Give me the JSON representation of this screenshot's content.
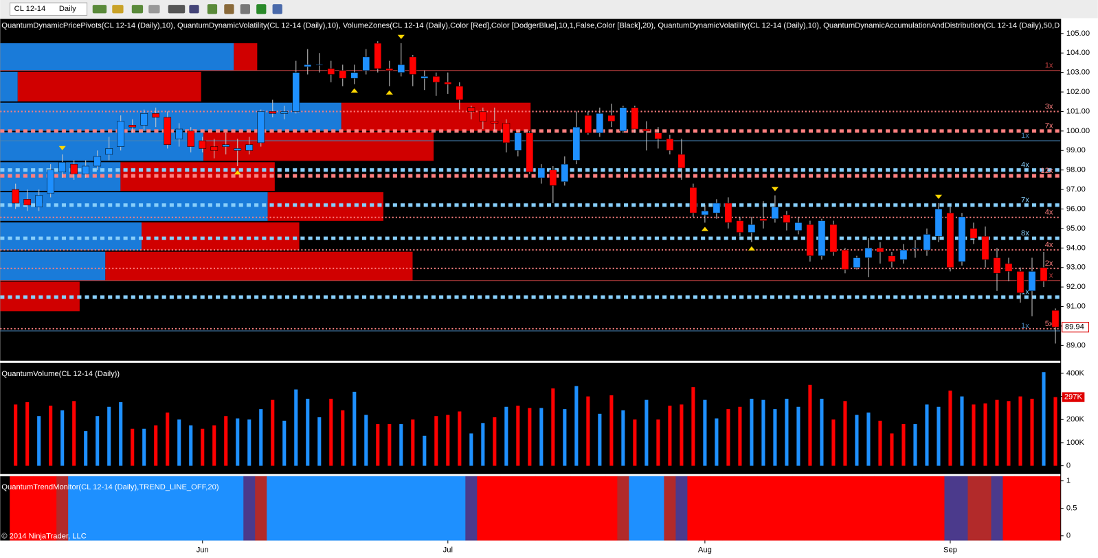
{
  "toolbar": {
    "instrument": "CL 12-14",
    "period": "Daily"
  },
  "copyright": "© 2014 NinjaTrader, LLC",
  "chart_data": [
    {
      "type": "candlestick",
      "title": "QuantumDynamicPricePivots(CL 12-14 (Daily),10), QuantumDynamicVolatility(CL 12-14 (Daily),10), VolumeZones(CL 12-14 (Daily),Color [Red],Color [DodgerBlue],10,1,False,Color [Black],20), QuantumDynamicVolatility(CL 12-14 (Daily),10), QuantumDynamicAccumulationAndDistribution(CL 12-14 (Daily),50,D",
      "categories": [
        null,
        null,
        null,
        null,
        null,
        null,
        null,
        null,
        null,
        null,
        null,
        null,
        null,
        null,
        null,
        null,
        "Jun",
        null,
        null,
        null,
        null,
        null,
        null,
        null,
        null,
        null,
        null,
        null,
        null,
        null,
        null,
        null,
        null,
        null,
        null,
        null,
        null,
        "Jul",
        null,
        null,
        null,
        null,
        null,
        null,
        null,
        null,
        null,
        null,
        null,
        null,
        null,
        null,
        null,
        null,
        null,
        null,
        null,
        null,
        null,
        "Aug",
        null,
        null,
        null,
        null,
        null,
        null,
        null,
        null,
        null,
        null,
        null,
        null,
        null,
        null,
        null,
        null,
        null,
        null,
        null,
        null,
        "Sep",
        null,
        null,
        null,
        null,
        null,
        null,
        null,
        null,
        null
      ],
      "open": [
        97.0,
        96.5,
        96.1,
        96.8,
        97.9,
        98.3,
        97.8,
        98.2,
        98.8,
        99.2,
        100.3,
        100.3,
        100.9,
        100.7,
        99.6,
        100.0,
        99.5,
        99.2,
        99.2,
        99.0,
        99.0,
        99.4,
        101.0,
        100.9,
        101.0,
        103.3,
        103.4,
        103.2,
        103.1,
        102.7,
        103.1,
        104.5,
        103.2,
        103.0,
        103.8,
        102.7,
        102.8,
        102.5,
        102.3,
        101.2,
        101.0,
        100.5,
        100.4,
        99.0,
        99.9,
        97.6,
        98.0,
        97.4,
        98.5,
        100.8,
        99.9,
        100.8,
        100.0,
        101.2,
        100.1,
        99.9,
        99.6,
        98.8,
        97.1,
        95.7,
        95.8,
        96.3,
        95.4,
        94.8,
        95.5,
        95.5,
        95.7,
        94.9,
        95.2,
        93.6,
        95.2,
        93.9,
        93.0,
        93.5,
        94.0,
        93.6,
        93.4,
        94.0,
        93.9,
        94.6,
        95.8,
        93.3,
        95.0,
        94.6,
        93.5,
        93.2,
        92.8,
        91.8,
        93.0,
        90.8
      ],
      "high": [
        97.3,
        97.0,
        97.0,
        98.3,
        98.8,
        98.5,
        98.5,
        99.0,
        99.7,
        100.8,
        100.6,
        101.1,
        101.2,
        101.0,
        100.4,
        100.2,
        99.7,
        99.6,
        99.9,
        99.6,
        99.7,
        101.1,
        101.6,
        101.3,
        103.6,
        104.2,
        104.0,
        103.6,
        103.4,
        103.4,
        104.2,
        104.6,
        103.6,
        104.5,
        103.9,
        103.1,
        103.0,
        103.0,
        102.5,
        101.3,
        101.2,
        101.2,
        100.6,
        100.0,
        100.0,
        98.3,
        98.2,
        98.7,
        101.0,
        101.0,
        101.2,
        101.4,
        101.3,
        101.3,
        100.5,
        100.2,
        99.8,
        99.6,
        97.3,
        96.2,
        96.5,
        96.6,
        95.6,
        95.6,
        96.4,
        96.7,
        95.9,
        95.6,
        95.4,
        95.5,
        95.4,
        94.0,
        93.6,
        94.5,
        94.3,
        93.8,
        94.2,
        94.4,
        95.0,
        96.3,
        96.1,
        95.8,
        95.3,
        95.1,
        94.0,
        93.5,
        93.0,
        93.5,
        93.8,
        90.9
      ],
      "low": [
        96.0,
        95.9,
        95.9,
        96.6,
        97.6,
        97.5,
        97.6,
        98.0,
        98.5,
        99.0,
        99.9,
        100.0,
        100.2,
        99.1,
        99.2,
        98.9,
        98.9,
        98.6,
        98.8,
        98.2,
        98.8,
        99.2,
        100.7,
        100.6,
        100.9,
        102.9,
        103.0,
        102.5,
        102.3,
        102.4,
        102.9,
        103.0,
        102.3,
        102.8,
        102.3,
        102.1,
        101.8,
        101.9,
        101.1,
        100.6,
        100.1,
        100.0,
        98.9,
        98.7,
        97.8,
        97.3,
        96.3,
        97.2,
        98.3,
        99.8,
        99.7,
        100.2,
        99.9,
        99.9,
        99.0,
        99.1,
        98.8,
        97.5,
        95.6,
        95.3,
        95.5,
        95.0,
        94.6,
        94.3,
        95.0,
        95.3,
        94.9,
        94.7,
        93.3,
        93.4,
        93.6,
        92.7,
        92.9,
        92.5,
        93.2,
        93.0,
        93.2,
        93.5,
        93.6,
        94.3,
        92.8,
        93.1,
        94.2,
        93.0,
        91.8,
        92.3,
        91.2,
        90.5,
        92.0,
        89.1
      ],
      "close": [
        96.3,
        96.2,
        96.7,
        98.0,
        98.4,
        97.8,
        98.2,
        98.7,
        99.1,
        100.5,
        100.2,
        100.9,
        100.7,
        99.3,
        100.1,
        99.2,
        99.1,
        99.0,
        99.3,
        99.1,
        99.3,
        101.0,
        100.9,
        101.0,
        103.0,
        103.4,
        103.4,
        102.9,
        102.7,
        103.0,
        103.8,
        103.2,
        103.1,
        103.4,
        102.9,
        102.8,
        102.5,
        102.4,
        101.6,
        101.0,
        100.5,
        100.4,
        99.4,
        99.9,
        97.9,
        98.1,
        97.2,
        98.3,
        100.2,
        99.9,
        100.9,
        100.5,
        101.2,
        100.1,
        100.0,
        99.6,
        99.0,
        98.1,
        95.8,
        95.9,
        96.3,
        95.3,
        94.8,
        95.2,
        95.4,
        96.1,
        95.3,
        95.3,
        93.6,
        95.4,
        93.8,
        92.9,
        93.5,
        94.0,
        93.8,
        93.3,
        93.9,
        94.0,
        94.7,
        96.0,
        93.0,
        95.6,
        94.5,
        93.4,
        92.7,
        92.8,
        91.7,
        92.8,
        92.3,
        89.94
      ],
      "up_color": "#1e90ff",
      "down_color": "#ff0000",
      "last_price": 89.94,
      "pivot_high_bars": [
        4,
        33,
        65,
        79
      ],
      "pivot_low_bars": [
        19,
        29,
        32,
        59,
        63
      ],
      "zones": [
        {
          "low": 103.1,
          "high": 104.5,
          "up": 20.0,
          "down": 2.0
        },
        {
          "low": 101.52,
          "high": 103.03,
          "up": 1.5,
          "down": 15.7
        },
        {
          "low": 100.01,
          "high": 101.45,
          "up": 29.2,
          "down": 16.2
        },
        {
          "low": 98.47,
          "high": 99.94,
          "up": 17.4,
          "down": 19.7
        },
        {
          "low": 96.93,
          "high": 98.4,
          "up": 10.3,
          "down": 13.2
        },
        {
          "low": 95.39,
          "high": 96.86,
          "up": 22.9,
          "down": 9.9
        },
        {
          "low": 93.88,
          "high": 95.31,
          "up": 12.1,
          "down": 13.5
        },
        {
          "low": 92.34,
          "high": 93.81,
          "up": 9.0,
          "down": 26.3
        },
        {
          "low": 90.76,
          "high": 92.27,
          "up": 0,
          "down": 6.8
        }
      ],
      "levels": [
        {
          "value": 103.1,
          "color": "#c04040",
          "style": "solid",
          "label": "1x"
        },
        {
          "value": 101.0,
          "color": "#ff8080",
          "style": "dotted",
          "label": "3x"
        },
        {
          "value": 100.0,
          "color": "#ff8080",
          "style": "squares",
          "label": "7x"
        },
        {
          "value": 99.5,
          "color": "#4682b4",
          "style": "solid",
          "label": "1x"
        },
        {
          "value": 98.0,
          "color": "#87cefa",
          "style": "squares",
          "label": "4x"
        },
        {
          "value": 97.7,
          "color": "#ff8080",
          "style": "squares",
          "label": "12x"
        },
        {
          "value": 96.2,
          "color": "#87cefa",
          "style": "squares",
          "label": "7x"
        },
        {
          "value": 95.57,
          "color": "#ff8080",
          "style": "dotted",
          "label": "4x"
        },
        {
          "value": 94.5,
          "color": "#87cefa",
          "style": "squares",
          "label": "8x"
        },
        {
          "value": 93.9,
          "color": "#ff8080",
          "style": "dotted",
          "label": "4x"
        },
        {
          "value": 92.95,
          "color": "#ff8080",
          "style": "dotted",
          "label": "2x"
        },
        {
          "value": 92.33,
          "color": "#c04040",
          "style": "solid",
          "label": "x"
        },
        {
          "value": 91.48,
          "color": "#87cefa",
          "style": "squares",
          "label": "1x"
        },
        {
          "value": 89.86,
          "color": "#ff8080",
          "style": "dotted",
          "label": "5x"
        },
        {
          "value": 89.75,
          "color": "#4682b4",
          "style": "solid",
          "label": "1x"
        }
      ],
      "ylim": [
        88.25,
        105.75
      ],
      "yticks": [
        {
          "value": 89,
          "label": "89.00"
        },
        {
          "value": 90,
          "label": "90.00"
        },
        {
          "value": 91,
          "label": "91.00"
        },
        {
          "value": 92,
          "label": "92.00"
        },
        {
          "value": 93,
          "label": "93.00"
        },
        {
          "value": 94,
          "label": "94.00"
        },
        {
          "value": 95,
          "label": "95.00"
        },
        {
          "value": 96,
          "label": "96.00"
        },
        {
          "value": 97,
          "label": "97.00"
        },
        {
          "value": 98,
          "label": "98.00"
        },
        {
          "value": 99,
          "label": "99.00"
        },
        {
          "value": 100,
          "label": "100.00"
        },
        {
          "value": 101,
          "label": "101.00"
        },
        {
          "value": 102,
          "label": "102.00"
        },
        {
          "value": 103,
          "label": "103.00"
        },
        {
          "value": 104,
          "label": "104.00"
        },
        {
          "value": 105,
          "label": "105.00"
        }
      ]
    },
    {
      "type": "bar",
      "title": "QuantumVolume(CL 12-14 (Daily))",
      "values": [
        265000,
        275000,
        215000,
        260000,
        240000,
        280000,
        150000,
        215000,
        255000,
        275000,
        160000,
        160000,
        175000,
        230000,
        200000,
        175000,
        160000,
        175000,
        215000,
        205000,
        200000,
        245000,
        285000,
        195000,
        330000,
        290000,
        210000,
        290000,
        240000,
        320000,
        220000,
        180000,
        180000,
        180000,
        200000,
        130000,
        215000,
        220000,
        235000,
        140000,
        185000,
        210000,
        255000,
        260000,
        250000,
        250000,
        335000,
        245000,
        345000,
        300000,
        225000,
        305000,
        240000,
        200000,
        285000,
        200000,
        260000,
        265000,
        340000,
        285000,
        205000,
        245000,
        255000,
        290000,
        285000,
        245000,
        290000,
        255000,
        350000,
        290000,
        200000,
        280000,
        220000,
        230000,
        195000,
        140000,
        180000,
        180000,
        265000,
        255000,
        325000,
        300000,
        265000,
        270000,
        285000,
        280000,
        300000,
        290000,
        405000,
        297000
      ],
      "colors": [
        "#ff0000",
        "#ff0000",
        "#1e90ff",
        "#ff0000",
        "#1e90ff",
        "#ff0000",
        "#1e90ff",
        "#1e90ff",
        "#1e90ff",
        "#1e90ff",
        "#ff0000",
        "#1e90ff",
        "#ff0000",
        "#ff0000",
        "#1e90ff",
        "#1e90ff",
        "#ff0000",
        "#ff0000",
        "#ff0000",
        "#1e90ff",
        "#1e90ff",
        "#1e90ff",
        "#ff0000",
        "#1e90ff",
        "#1e90ff",
        "#1e90ff",
        "#1e90ff",
        "#ff0000",
        "#ff0000",
        "#1e90ff",
        "#1e90ff",
        "#ff0000",
        "#ff0000",
        "#1e90ff",
        "#ff0000",
        "#1e90ff",
        "#ff0000",
        "#ff0000",
        "#ff0000",
        "#1e90ff",
        "#1e90ff",
        "#ff0000",
        "#1e90ff",
        "#ff0000",
        "#ff0000",
        "#1e90ff",
        "#ff0000",
        "#1e90ff",
        "#1e90ff",
        "#ff0000",
        "#1e90ff",
        "#ff0000",
        "#1e90ff",
        "#ff0000",
        "#1e90ff",
        "#ff0000",
        "#ff0000",
        "#ff0000",
        "#ff0000",
        "#1e90ff",
        "#1e90ff",
        "#ff0000",
        "#ff0000",
        "#1e90ff",
        "#1e90ff",
        "#1e90ff",
        "#1e90ff",
        "#1e90ff",
        "#ff0000",
        "#1e90ff",
        "#ff0000",
        "#ff0000",
        "#1e90ff",
        "#1e90ff",
        "#ff0000",
        "#ff0000",
        "#ff0000",
        "#1e90ff",
        "#1e90ff",
        "#1e90ff",
        "#ff0000",
        "#1e90ff",
        "#ff0000",
        "#ff0000",
        "#ff0000",
        "#ff0000",
        "#ff0000",
        "#ff0000",
        "#1e90ff",
        "#ff0000"
      ],
      "last_label": {
        "value": 297000,
        "label": "297K"
      },
      "ylim": [
        -36000,
        445000
      ],
      "yticks": [
        0,
        {
          "value": 100000,
          "label": "100K"
        },
        {
          "value": 200000,
          "label": "200K"
        },
        {
          "value": 300000,
          "label": "300K"
        },
        {
          "value": 400000,
          "label": "400K"
        }
      ]
    },
    {
      "type": "band",
      "title": "QuantumTrendMonitor(CL 12-14 (Daily),TREND_LINE_OFF,20)",
      "colors": [
        "#ff0000",
        "#ff0000",
        "#ff0000",
        "#ff0000",
        "#b22a2a",
        "#1e90ff",
        "#1e90ff",
        "#1e90ff",
        "#1e90ff",
        "#1e90ff",
        "#1e90ff",
        "#1e90ff",
        "#1e90ff",
        "#1e90ff",
        "#1e90ff",
        "#1e90ff",
        "#1e90ff",
        "#1e90ff",
        "#1e90ff",
        "#1e90ff",
        "#4b3a8c",
        "#b22a2a",
        "#1e90ff",
        "#1e90ff",
        "#1e90ff",
        "#1e90ff",
        "#1e90ff",
        "#1e90ff",
        "#1e90ff",
        "#1e90ff",
        "#1e90ff",
        "#1e90ff",
        "#1e90ff",
        "#1e90ff",
        "#1e90ff",
        "#1e90ff",
        "#1e90ff",
        "#1e90ff",
        "#1e90ff",
        "#4b3a8c",
        "#ff0000",
        "#ff0000",
        "#ff0000",
        "#ff0000",
        "#ff0000",
        "#ff0000",
        "#ff0000",
        "#ff0000",
        "#ff0000",
        "#ff0000",
        "#ff0000",
        "#ff0000",
        "#b22a2a",
        "#1e90ff",
        "#1e90ff",
        "#1e90ff",
        "#b22a2a",
        "#4b3a8c",
        "#ff0000",
        "#ff0000",
        "#ff0000",
        "#ff0000",
        "#ff0000",
        "#ff0000",
        "#ff0000",
        "#ff0000",
        "#ff0000",
        "#ff0000",
        "#ff0000",
        "#ff0000",
        "#ff0000",
        "#ff0000",
        "#ff0000",
        "#ff0000",
        "#ff0000",
        "#ff0000",
        "#ff0000",
        "#ff0000",
        "#ff0000",
        "#ff0000",
        "#4b3a8c",
        "#4b3a8c",
        "#b22a2a",
        "#b22a2a",
        "#4b3a8c",
        "#ff0000",
        "#ff0000",
        "#ff0000",
        "#ff0000",
        "#ff0000"
      ],
      "ylim": [
        -0.085,
        1.085
      ],
      "yticks": [
        0,
        0.5,
        1
      ]
    }
  ]
}
